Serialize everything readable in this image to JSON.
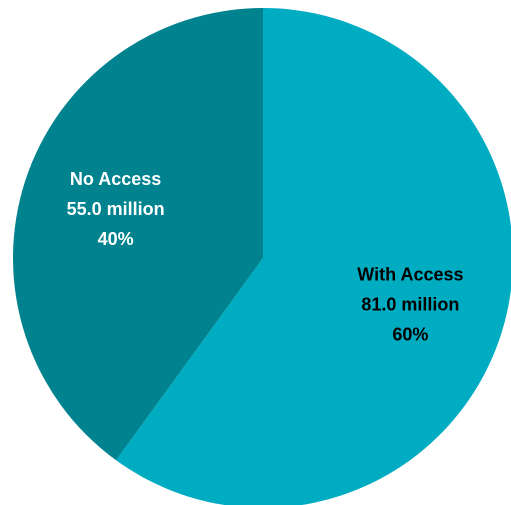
{
  "chart_data": {
    "type": "pie",
    "start_angle_deg": 0,
    "direction": "clockwise",
    "slices": [
      {
        "name": "With Access",
        "value_label": "81.0 million",
        "percent_label": "60%",
        "value": 81.0,
        "percent": 60,
        "color": "#00acc1",
        "label_color": "#000000"
      },
      {
        "name": "No Access",
        "value_label": "55.0 million",
        "percent_label": "40%",
        "value": 55.0,
        "percent": 40,
        "color": "#00838f",
        "label_color": "#ffffff"
      }
    ],
    "legend": "none"
  }
}
